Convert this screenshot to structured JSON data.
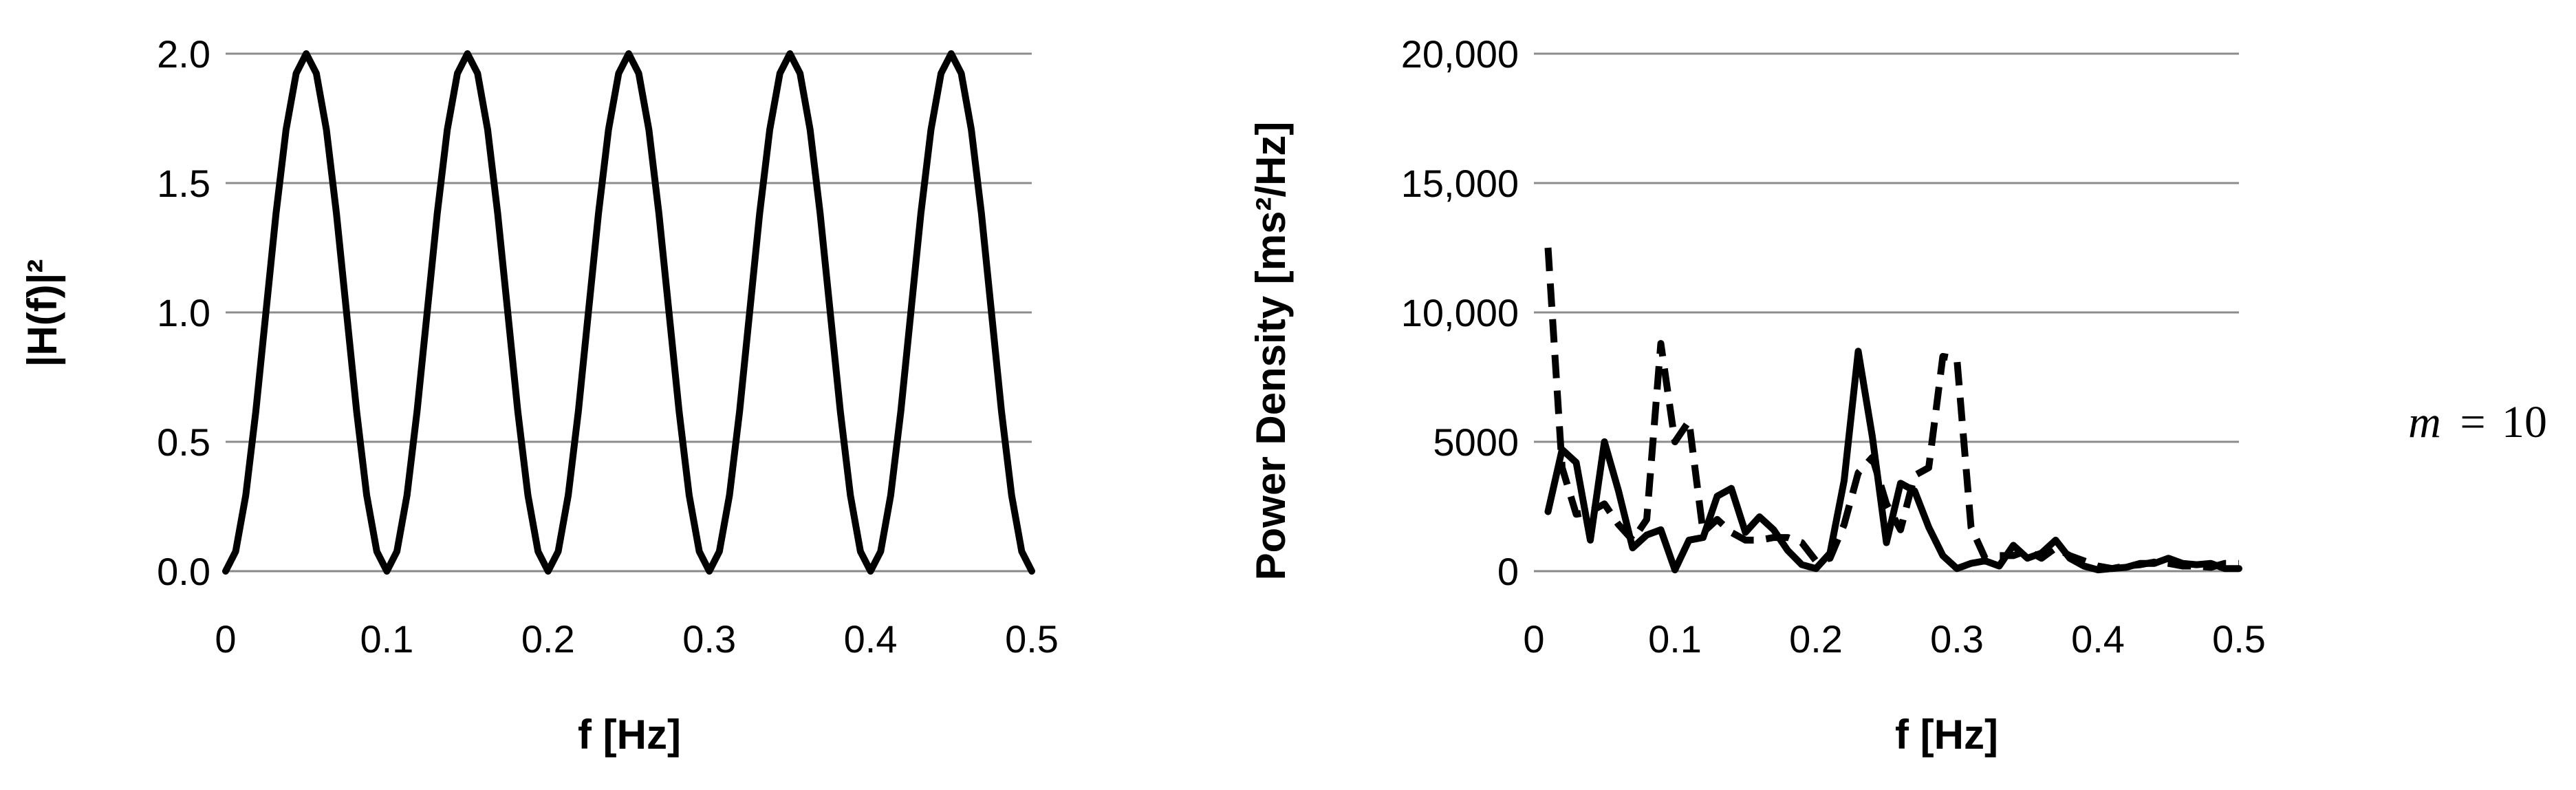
{
  "annotation": {
    "variable": "m",
    "equals": "=",
    "value": "10"
  },
  "chart_data": [
    {
      "type": "line",
      "xlabel": "f [Hz]",
      "ylabel": "|H(f)|²",
      "xlim": [
        0,
        0.5
      ],
      "ylim": [
        0,
        2.0
      ],
      "x_ticks": [
        "0",
        "0.1",
        "0.2",
        "0.3",
        "0.4",
        "0.5"
      ],
      "y_ticks": [
        "0.0",
        "0.5",
        "1.0",
        "1.5",
        "2.0"
      ],
      "grid": "horizontal",
      "series": [
        {
          "style": "solid",
          "x": [
            0,
            0.00625,
            0.0125,
            0.01875,
            0.025,
            0.03125,
            0.0375,
            0.04375,
            0.05,
            0.05625,
            0.0625,
            0.06875,
            0.075,
            0.08125,
            0.0875,
            0.09375,
            0.1,
            0.10625,
            0.1125,
            0.11875,
            0.125,
            0.13125,
            0.1375,
            0.14375,
            0.15,
            0.15625,
            0.1625,
            0.16875,
            0.175,
            0.18125,
            0.1875,
            0.19375,
            0.2,
            0.20625,
            0.2125,
            0.21875,
            0.225,
            0.23125,
            0.2375,
            0.24375,
            0.25,
            0.25625,
            0.2625,
            0.26875,
            0.275,
            0.28125,
            0.2875,
            0.29375,
            0.3,
            0.30625,
            0.3125,
            0.31875,
            0.325,
            0.33125,
            0.3375,
            0.34375,
            0.35,
            0.35625,
            0.3625,
            0.36875,
            0.375,
            0.38125,
            0.3875,
            0.39375,
            0.4,
            0.40625,
            0.4125,
            0.41875,
            0.425,
            0.43125,
            0.4375,
            0.44375,
            0.45,
            0.45625,
            0.4625,
            0.46875,
            0.475,
            0.48125,
            0.4875,
            0.49375,
            0.5
          ],
          "y": [
            0,
            0.076,
            0.293,
            0.617,
            1.0,
            1.383,
            1.707,
            1.924,
            2.0,
            1.924,
            1.707,
            1.383,
            1.0,
            0.617,
            0.293,
            0.076,
            0,
            0.076,
            0.293,
            0.617,
            1.0,
            1.383,
            1.707,
            1.924,
            2.0,
            1.924,
            1.707,
            1.383,
            1.0,
            0.617,
            0.293,
            0.076,
            0,
            0.076,
            0.293,
            0.617,
            1.0,
            1.383,
            1.707,
            1.924,
            2.0,
            1.924,
            1.707,
            1.383,
            1.0,
            0.617,
            0.293,
            0.076,
            0,
            0.076,
            0.293,
            0.617,
            1.0,
            1.383,
            1.707,
            1.924,
            2.0,
            1.924,
            1.707,
            1.383,
            1.0,
            0.617,
            0.293,
            0.076,
            0,
            0.076,
            0.293,
            0.617,
            1.0,
            1.383,
            1.707,
            1.924,
            2.0,
            1.924,
            1.707,
            1.383,
            1.0,
            0.617,
            0.293,
            0.076,
            0
          ]
        }
      ]
    },
    {
      "type": "line",
      "xlabel": "f [Hz]",
      "ylabel": "Power Density [ms²/Hz]",
      "xlim": [
        0,
        0.5
      ],
      "ylim": [
        0,
        20000
      ],
      "x_ticks": [
        "0",
        "0.1",
        "0.2",
        "0.3",
        "0.4",
        "0.5"
      ],
      "y_ticks": [
        "0",
        "5000",
        "10,000",
        "15,000",
        "20,000"
      ],
      "grid": "horizontal",
      "series": [
        {
          "style": "solid",
          "x": [
            0.01,
            0.02,
            0.03,
            0.04,
            0.05,
            0.06,
            0.07,
            0.08,
            0.09,
            0.1,
            0.11,
            0.12,
            0.13,
            0.14,
            0.15,
            0.16,
            0.17,
            0.18,
            0.19,
            0.2,
            0.21,
            0.22,
            0.23,
            0.24,
            0.25,
            0.26,
            0.27,
            0.28,
            0.29,
            0.3,
            0.31,
            0.32,
            0.33,
            0.34,
            0.35,
            0.36,
            0.37,
            0.38,
            0.39,
            0.4,
            0.41,
            0.42,
            0.43,
            0.44,
            0.45,
            0.46,
            0.47,
            0.48,
            0.49,
            0.5
          ],
          "y": [
            2300,
            4700,
            4200,
            1200,
            5000,
            3100,
            900,
            1400,
            1600,
            50,
            1200,
            1300,
            2900,
            3200,
            1500,
            2100,
            1600,
            800,
            250,
            100,
            700,
            3500,
            8500,
            5200,
            1100,
            3400,
            3100,
            1700,
            600,
            100,
            300,
            400,
            200,
            1000,
            500,
            700,
            1200,
            500,
            200,
            50,
            100,
            150,
            300,
            300,
            500,
            300,
            250,
            300,
            100,
            100
          ]
        },
        {
          "style": "dashed",
          "x": [
            0.01,
            0.02,
            0.03,
            0.04,
            0.05,
            0.06,
            0.07,
            0.08,
            0.09,
            0.1,
            0.11,
            0.12,
            0.13,
            0.14,
            0.15,
            0.16,
            0.17,
            0.18,
            0.19,
            0.2,
            0.21,
            0.22,
            0.23,
            0.24,
            0.25,
            0.26,
            0.27,
            0.28,
            0.29,
            0.3,
            0.31,
            0.32,
            0.33,
            0.34,
            0.35,
            0.36,
            0.37,
            0.38,
            0.39,
            0.4,
            0.41,
            0.42,
            0.43,
            0.44,
            0.45,
            0.46,
            0.47,
            0.48,
            0.49,
            0.5
          ],
          "y": [
            12500,
            4000,
            2200,
            2300,
            2600,
            1800,
            1200,
            2000,
            8800,
            5000,
            5800,
            1500,
            2000,
            1500,
            1200,
            1200,
            1300,
            1300,
            1100,
            400,
            500,
            1800,
            3800,
            4400,
            2600,
            1600,
            3700,
            4000,
            8300,
            8200,
            1700,
            500,
            600,
            600,
            800,
            500,
            900,
            600,
            400,
            200,
            100,
            200,
            250,
            350,
            300,
            200,
            200,
            150,
            300,
            300
          ]
        }
      ]
    }
  ]
}
